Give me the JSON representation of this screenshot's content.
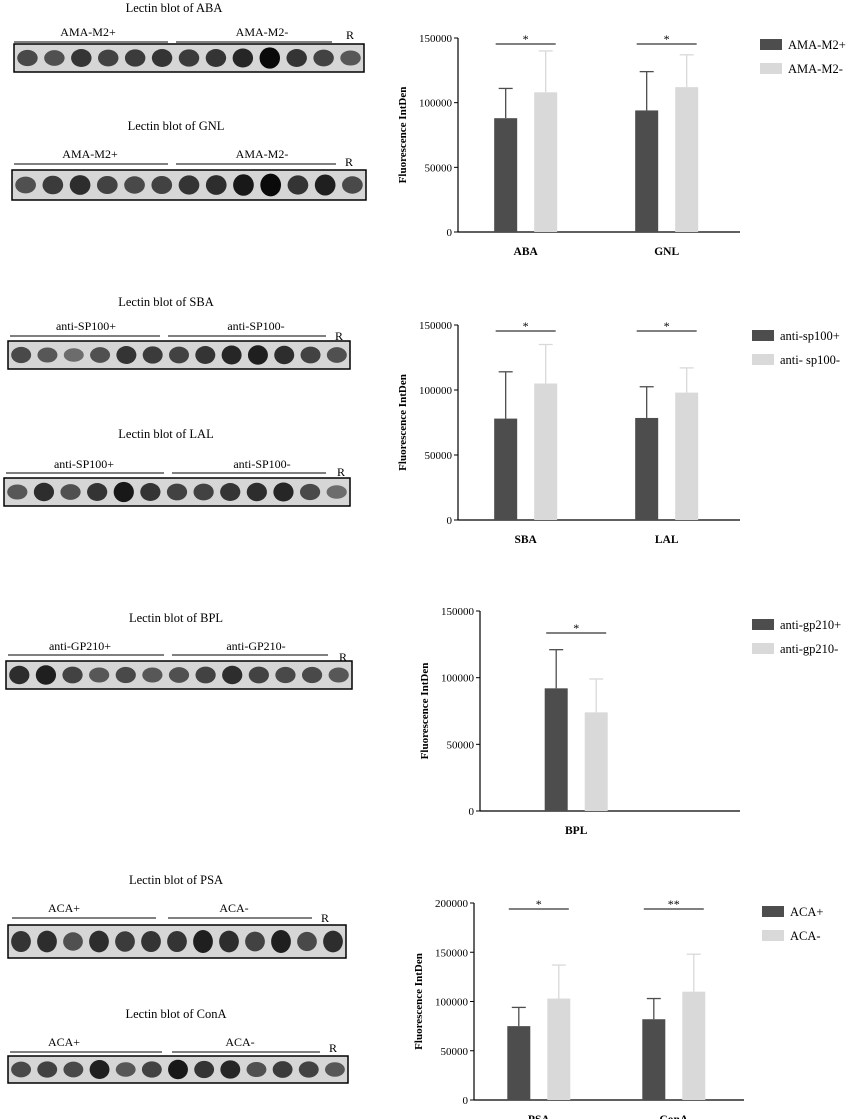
{
  "colors": {
    "dark": "#4d4d4d",
    "light": "#d9d9d9",
    "axis": "#000000"
  },
  "blots": [
    {
      "title": "Lectin blot of ABA",
      "left_label": "AMA-M2+",
      "right_label": "AMA-M2-",
      "ref_label": "R",
      "intensities": [
        0.55,
        0.5,
        0.7,
        0.6,
        0.65,
        0.7,
        0.65,
        0.7,
        0.8,
        1.0,
        0.7,
        0.6,
        0.45
      ]
    },
    {
      "title": "Lectin blot of GNL",
      "left_label": "AMA-M2+",
      "right_label": "AMA-M2-",
      "ref_label": "R",
      "intensities": [
        0.5,
        0.65,
        0.75,
        0.6,
        0.55,
        0.6,
        0.7,
        0.75,
        0.9,
        1.0,
        0.7,
        0.85,
        0.55
      ]
    },
    {
      "title": "Lectin blot of SBA",
      "left_label": "anti-SP100+",
      "right_label": "anti-SP100-",
      "ref_label": "R",
      "intensities": [
        0.55,
        0.45,
        0.3,
        0.5,
        0.7,
        0.65,
        0.6,
        0.7,
        0.8,
        0.85,
        0.75,
        0.6,
        0.5
      ]
    },
    {
      "title": "Lectin blot of LAL",
      "left_label": "anti-SP100+",
      "right_label": "anti-SP100-",
      "ref_label": "R",
      "intensities": [
        0.45,
        0.75,
        0.5,
        0.7,
        0.9,
        0.7,
        0.6,
        0.6,
        0.7,
        0.75,
        0.8,
        0.55,
        0.3
      ]
    },
    {
      "title": "Lectin blot of BPL",
      "left_label": "anti-GP210+",
      "right_label": "anti-GP210-",
      "ref_label": "R",
      "intensities": [
        0.75,
        0.85,
        0.6,
        0.45,
        0.55,
        0.45,
        0.5,
        0.6,
        0.75,
        0.6,
        0.55,
        0.55,
        0.45
      ]
    },
    {
      "title": "Lectin blot of PSA",
      "left_label": "ACA+",
      "right_label": "ACA-",
      "ref_label": "R",
      "intensities": [
        0.7,
        0.75,
        0.5,
        0.75,
        0.65,
        0.7,
        0.7,
        0.85,
        0.75,
        0.6,
        0.85,
        0.55,
        0.75
      ]
    },
    {
      "title": "Lectin blot of ConA",
      "left_label": "ACA+",
      "right_label": "ACA-",
      "ref_label": "R",
      "intensities": [
        0.55,
        0.6,
        0.55,
        0.85,
        0.45,
        0.6,
        0.9,
        0.7,
        0.8,
        0.5,
        0.65,
        0.6,
        0.45
      ]
    }
  ],
  "chart_data": [
    {
      "type": "bar",
      "ylabel": "Fluorescence IntDen",
      "ylim": [
        0,
        150000
      ],
      "yticks": [
        0,
        50000,
        100000,
        150000
      ],
      "categories": [
        "ABA",
        "GNL"
      ],
      "series": [
        {
          "name": "AMA-M2+",
          "values": [
            88000,
            94000
          ],
          "errors": [
            23000,
            30000
          ]
        },
        {
          "name": "AMA-M2-",
          "values": [
            108000,
            112000
          ],
          "errors": [
            32000,
            25000
          ]
        }
      ],
      "significance": [
        "*",
        "*"
      ],
      "legend": "top-right"
    },
    {
      "type": "bar",
      "ylabel": "Fluorescence IntDen",
      "ylim": [
        0,
        150000
      ],
      "yticks": [
        0,
        50000,
        100000,
        150000
      ],
      "categories": [
        "SBA",
        "LAL"
      ],
      "series": [
        {
          "name": "anti-sp100+",
          "values": [
            78000,
            78500
          ],
          "errors": [
            36000,
            24000
          ]
        },
        {
          "name": "anti- sp100-",
          "values": [
            105000,
            98000
          ],
          "errors": [
            30000,
            19000
          ]
        }
      ],
      "significance": [
        "*",
        "*"
      ],
      "legend": "top-right"
    },
    {
      "type": "bar",
      "ylabel": "Fluorescence IntDen",
      "ylim": [
        0,
        150000
      ],
      "yticks": [
        0,
        50000,
        100000,
        150000
      ],
      "categories": [
        "BPL"
      ],
      "series": [
        {
          "name": "anti-gp210+",
          "values": [
            92000
          ],
          "errors": [
            29000
          ]
        },
        {
          "name": "anti-gp210-",
          "values": [
            74000
          ],
          "errors": [
            25000
          ]
        }
      ],
      "significance": [
        "*"
      ],
      "legend": "top-right"
    },
    {
      "type": "bar",
      "ylabel": "Fluorescence IntDen",
      "ylim": [
        0,
        200000
      ],
      "yticks": [
        0,
        50000,
        100000,
        150000,
        200000
      ],
      "categories": [
        "PSA",
        "ConA"
      ],
      "series": [
        {
          "name": "ACA+",
          "values": [
            75000,
            82000
          ],
          "errors": [
            19000,
            21000
          ]
        },
        {
          "name": "ACA-",
          "values": [
            103000,
            110000
          ],
          "errors": [
            34000,
            38000
          ]
        }
      ],
      "significance": [
        "*",
        "**"
      ],
      "legend": "top-right"
    }
  ]
}
